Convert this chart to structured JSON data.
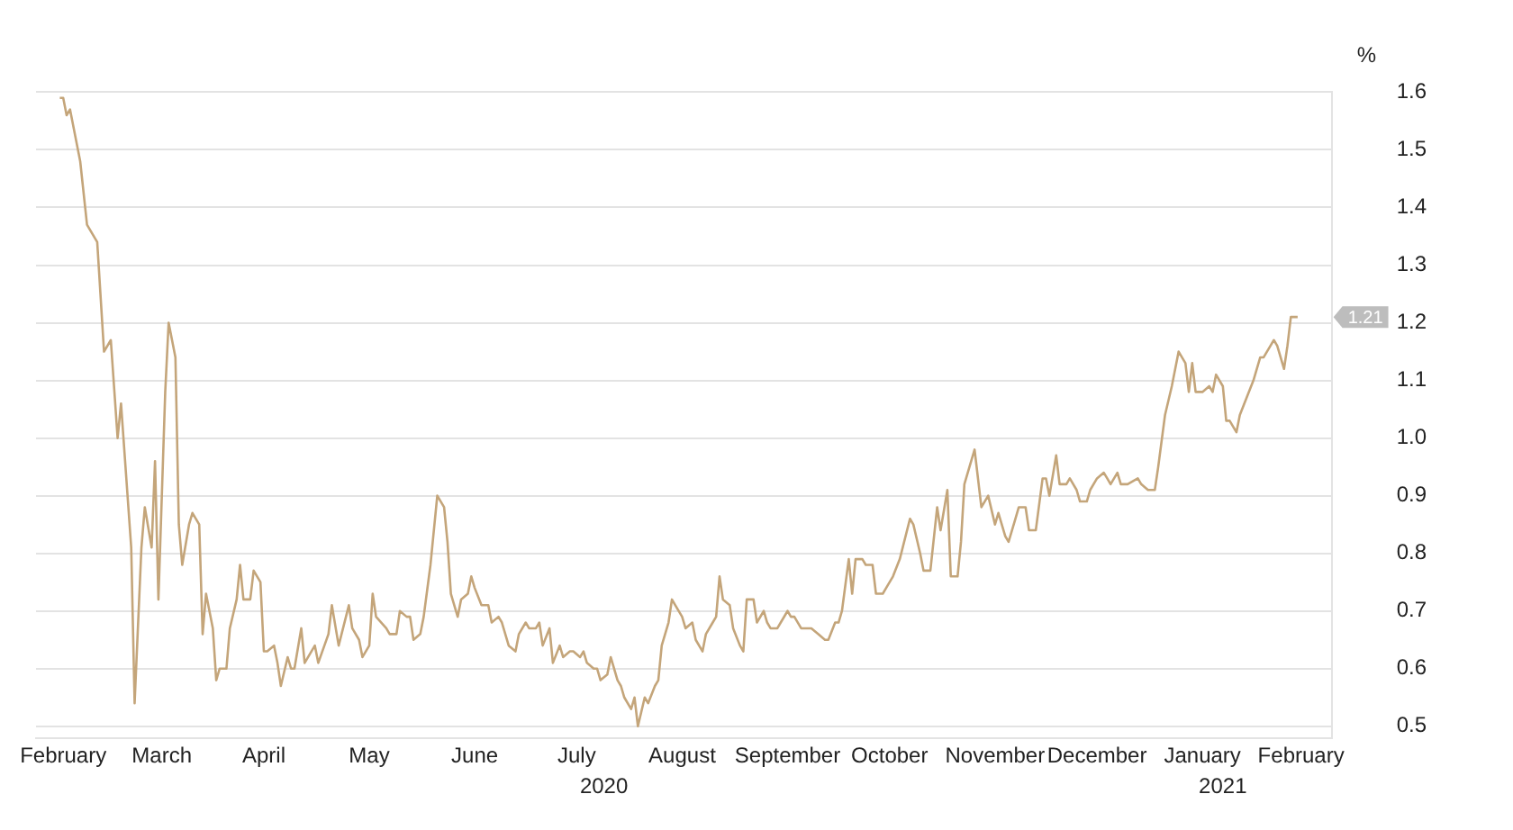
{
  "chart_data": {
    "type": "line",
    "ylabel": "%",
    "x": [
      "2020-02-15",
      "2020-02-16",
      "2020-02-17",
      "2020-02-18",
      "2020-02-21",
      "2020-02-23",
      "2020-02-26",
      "2020-02-28",
      "2020-03-01",
      "2020-03-03",
      "2020-03-04",
      "2020-03-07",
      "2020-03-08",
      "2020-03-10",
      "2020-03-11",
      "2020-03-13",
      "2020-03-14",
      "2020-03-15",
      "2020-03-17",
      "2020-03-18",
      "2020-03-20",
      "2020-03-21",
      "2020-03-22",
      "2020-03-24",
      "2020-03-25",
      "2020-03-27",
      "2020-03-28",
      "2020-03-29",
      "2020-03-31",
      "2020-04-01",
      "2020-04-02",
      "2020-04-04",
      "2020-04-05",
      "2020-04-07",
      "2020-04-08",
      "2020-04-09",
      "2020-04-11",
      "2020-04-12",
      "2020-04-14",
      "2020-04-15",
      "2020-04-16",
      "2020-04-18",
      "2020-04-19",
      "2020-04-20",
      "2020-04-22",
      "2020-04-23",
      "2020-04-24",
      "2020-04-26",
      "2020-04-27",
      "2020-04-30",
      "2020-05-01",
      "2020-05-04",
      "2020-05-05",
      "2020-05-07",
      "2020-05-10",
      "2020-05-11",
      "2020-05-13",
      "2020-05-14",
      "2020-05-16",
      "2020-05-17",
      "2020-05-18",
      "2020-05-21",
      "2020-05-22",
      "2020-05-24",
      "2020-05-25",
      "2020-05-27",
      "2020-05-28",
      "2020-05-29",
      "2020-05-31",
      "2020-06-01",
      "2020-06-03",
      "2020-06-05",
      "2020-06-07",
      "2020-06-08",
      "2020-06-09",
      "2020-06-11",
      "2020-06-12",
      "2020-06-14",
      "2020-06-15",
      "2020-06-16",
      "2020-06-18",
      "2020-06-20",
      "2020-06-21",
      "2020-06-23",
      "2020-06-24",
      "2020-06-26",
      "2020-06-28",
      "2020-06-29",
      "2020-07-01",
      "2020-07-02",
      "2020-07-04",
      "2020-07-05",
      "2020-07-06",
      "2020-07-08",
      "2020-07-09",
      "2020-07-11",
      "2020-07-12",
      "2020-07-14",
      "2020-07-15",
      "2020-07-17",
      "2020-07-18",
      "2020-07-19",
      "2020-07-21",
      "2020-07-22",
      "2020-07-23",
      "2020-07-25",
      "2020-07-26",
      "2020-07-28",
      "2020-07-29",
      "2020-07-30",
      "2020-08-01",
      "2020-08-02",
      "2020-08-03",
      "2020-08-05",
      "2020-08-06",
      "2020-08-08",
      "2020-08-09",
      "2020-08-10",
      "2020-08-12",
      "2020-08-13",
      "2020-08-14",
      "2020-08-16",
      "2020-08-17",
      "2020-08-19",
      "2020-08-20",
      "2020-08-22",
      "2020-08-23",
      "2020-08-25",
      "2020-08-26",
      "2020-08-27",
      "2020-08-28",
      "2020-08-30",
      "2020-08-31",
      "2020-09-02",
      "2020-09-03",
      "2020-09-04",
      "2020-09-06",
      "2020-09-07",
      "2020-09-09",
      "2020-09-10",
      "2020-09-11",
      "2020-09-13",
      "2020-09-14",
      "2020-09-16",
      "2020-09-17",
      "2020-09-18",
      "2020-09-20",
      "2020-09-21",
      "2020-09-23",
      "2020-09-25",
      "2020-09-27",
      "2020-09-28",
      "2020-09-30",
      "2020-10-01",
      "2020-10-02",
      "2020-10-04",
      "2020-10-05",
      "2020-10-06",
      "2020-10-08",
      "2020-10-09",
      "2020-10-11",
      "2020-10-12",
      "2020-10-14",
      "2020-10-15",
      "2020-10-17",
      "2020-10-19",
      "2020-10-22",
      "2020-10-23",
      "2020-10-25",
      "2020-10-26",
      "2020-10-28",
      "2020-10-30",
      "2020-10-31",
      "2020-11-02",
      "2020-11-03",
      "2020-11-05",
      "2020-11-06",
      "2020-11-07",
      "2020-11-09",
      "2020-11-10",
      "2020-11-12",
      "2020-11-14",
      "2020-11-16",
      "2020-11-17",
      "2020-11-19",
      "2020-11-20",
      "2020-11-22",
      "2020-11-23",
      "2020-11-25",
      "2020-11-26",
      "2020-11-28",
      "2020-11-30",
      "2020-12-01",
      "2020-12-02",
      "2020-12-04",
      "2020-12-05",
      "2020-12-07",
      "2020-12-08",
      "2020-12-10",
      "2020-12-11",
      "2020-12-13",
      "2020-12-14",
      "2020-12-16",
      "2020-12-18",
      "2020-12-19",
      "2020-12-20",
      "2020-12-22",
      "2020-12-23",
      "2020-12-25",
      "2020-12-28",
      "2020-12-29",
      "2020-12-31",
      "2021-01-02",
      "2021-01-03",
      "2021-01-05",
      "2021-01-07",
      "2021-01-09",
      "2021-01-11",
      "2021-01-12",
      "2021-01-13",
      "2021-01-14",
      "2021-01-16",
      "2021-01-18",
      "2021-01-19",
      "2021-01-20",
      "2021-01-22",
      "2021-01-23",
      "2021-01-24",
      "2021-01-26",
      "2021-01-27",
      "2021-01-29",
      "2021-01-31",
      "2021-02-02",
      "2021-02-03",
      "2021-02-05",
      "2021-02-06",
      "2021-02-07",
      "2021-02-09",
      "2021-02-10",
      "2021-02-11",
      "2021-02-13"
    ],
    "series": [
      {
        "color": "#c4a57a",
        "values": [
          1.59,
          1.59,
          1.56,
          1.57,
          1.48,
          1.37,
          1.34,
          1.15,
          1.17,
          1.0,
          1.06,
          0.81,
          0.54,
          0.81,
          0.88,
          0.81,
          0.96,
          0.72,
          1.08,
          1.2,
          1.14,
          0.85,
          0.78,
          0.85,
          0.87,
          0.85,
          0.66,
          0.73,
          0.67,
          0.58,
          0.6,
          0.6,
          0.67,
          0.72,
          0.78,
          0.72,
          0.72,
          0.77,
          0.75,
          0.63,
          0.63,
          0.64,
          0.61,
          0.57,
          0.62,
          0.6,
          0.6,
          0.67,
          0.61,
          0.64,
          0.61,
          0.66,
          0.71,
          0.64,
          0.71,
          0.67,
          0.65,
          0.62,
          0.64,
          0.73,
          0.69,
          0.67,
          0.66,
          0.66,
          0.7,
          0.69,
          0.69,
          0.65,
          0.66,
          0.69,
          0.78,
          0.9,
          0.88,
          0.82,
          0.73,
          0.69,
          0.72,
          0.73,
          0.76,
          0.74,
          0.71,
          0.71,
          0.68,
          0.69,
          0.68,
          0.64,
          0.63,
          0.66,
          0.68,
          0.67,
          0.67,
          0.68,
          0.64,
          0.67,
          0.61,
          0.64,
          0.62,
          0.63,
          0.63,
          0.62,
          0.63,
          0.61,
          0.6,
          0.6,
          0.58,
          0.59,
          0.62,
          0.58,
          0.57,
          0.55,
          0.53,
          0.55,
          0.5,
          0.55,
          0.54,
          0.57,
          0.58,
          0.64,
          0.68,
          0.72,
          0.71,
          0.69,
          0.67,
          0.68,
          0.65,
          0.63,
          0.66,
          0.68,
          0.69,
          0.76,
          0.72,
          0.71,
          0.67,
          0.64,
          0.63,
          0.72,
          0.72,
          0.68,
          0.7,
          0.68,
          0.67,
          0.67,
          0.68,
          0.7,
          0.69,
          0.69,
          0.67,
          0.67,
          0.67,
          0.66,
          0.65,
          0.65,
          0.68,
          0.68,
          0.7,
          0.79,
          0.73,
          0.79,
          0.79,
          0.78,
          0.78,
          0.73,
          0.73,
          0.74,
          0.76,
          0.79,
          0.86,
          0.85,
          0.8,
          0.77,
          0.77,
          0.88,
          0.84,
          0.91,
          0.76,
          0.76,
          0.82,
          0.92,
          0.96,
          0.98,
          0.88,
          0.9,
          0.85,
          0.87,
          0.83,
          0.82,
          0.86,
          0.88,
          0.88,
          0.84,
          0.84,
          0.93,
          0.93,
          0.9,
          0.97,
          0.92,
          0.92,
          0.93,
          0.91,
          0.89,
          0.89,
          0.91,
          0.93,
          0.94,
          0.93,
          0.92,
          0.94,
          0.92,
          0.92,
          0.93,
          0.92,
          0.91,
          0.91,
          0.95,
          1.04,
          1.09,
          1.15,
          1.13,
          1.08,
          1.13,
          1.08,
          1.08,
          1.09,
          1.08,
          1.11,
          1.09,
          1.03,
          1.03,
          1.01,
          1.04,
          1.07,
          1.1,
          1.14,
          1.14,
          1.16,
          1.17,
          1.16,
          1.12,
          1.16,
          1.21,
          1.21
        ]
      }
    ],
    "xlim": [
      "2020-02-08",
      "2021-02-23"
    ],
    "xticks": [
      {
        "value": "2020-02-16",
        "label": "February"
      },
      {
        "value": "2020-03-16",
        "label": "March"
      },
      {
        "value": "2020-04-15",
        "label": "April"
      },
      {
        "value": "2020-05-16",
        "label": "May"
      },
      {
        "value": "2020-06-16",
        "label": "June"
      },
      {
        "value": "2020-07-16",
        "label": "July"
      },
      {
        "value": "2020-08-16",
        "label": "August"
      },
      {
        "value": "2020-09-16",
        "label": "September"
      },
      {
        "value": "2020-10-16",
        "label": "October"
      },
      {
        "value": "2020-11-16",
        "label": "November"
      },
      {
        "value": "2020-12-16",
        "label": "December"
      },
      {
        "value": "2021-01-16",
        "label": "January"
      },
      {
        "value": "2021-02-14",
        "label": "February"
      }
    ],
    "ylim": [
      0.48,
      1.6
    ],
    "yticks": [
      0.5,
      0.6,
      0.7,
      0.8,
      0.9,
      {
        "value": 1,
        "label": "1.0"
      },
      1.1,
      1.2,
      1.3,
      1.4,
      1.5,
      1.6
    ],
    "x2lim": [
      "2020-02-08",
      "2021-02-23"
    ],
    "x2ticks": [
      {
        "value": "2020-07-24",
        "label": "2020"
      },
      {
        "value": "2021-01-22",
        "label": "2021"
      }
    ],
    "annotations": [
      {
        "text": "1.21",
        "x": "2021-02-13",
        "y": 1.21
      }
    ],
    "grid": "y",
    "legend": false,
    "marker": "none",
    "line_style": "solid"
  }
}
